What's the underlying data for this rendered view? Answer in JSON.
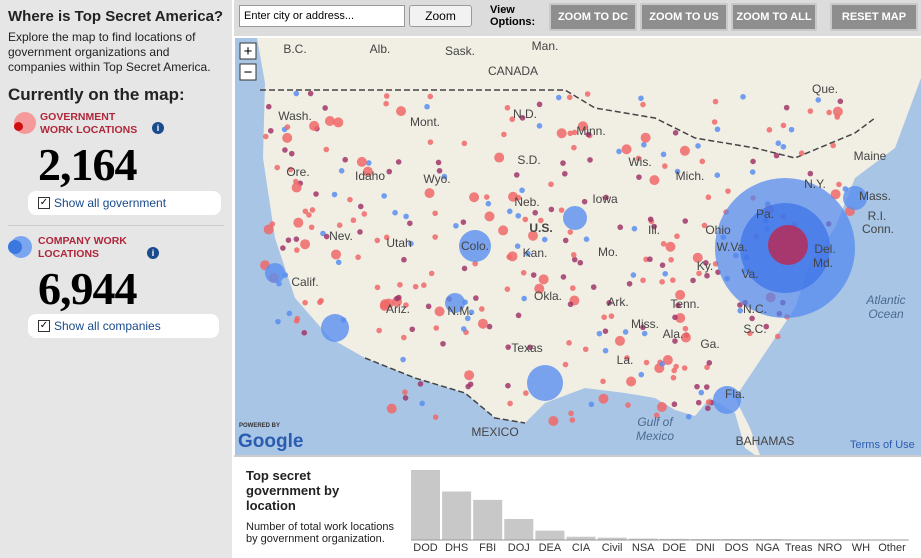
{
  "sidebar": {
    "title": "Where is Top Secret America?",
    "intro": "Explore the map to find locations of government organizations and companies within Top Secret America.",
    "heading": "Currently on the map:",
    "government": {
      "label": "GOVERNMENT WORK LOCATIONS",
      "count": "2,164",
      "toggle": "Show all government"
    },
    "company": {
      "label": "COMPANY WORK LOCATIONS",
      "count": "6,944",
      "toggle": "Show all companies"
    }
  },
  "toolbar": {
    "search_placeholder": "Enter city  or address...",
    "zoom": "Zoom",
    "view_options": "View Options:",
    "buttons": [
      "ZOOM TO DC",
      "ZOOM TO US",
      "ZOOM TO ALL"
    ],
    "reset": "RESET MAP"
  },
  "map": {
    "labels": [
      "B.C.",
      "Alb.",
      "Sask.",
      "Man.",
      "CANADA",
      "Que.",
      "Wash.",
      "Mont.",
      "N.D.",
      "Minn.",
      "Ore.",
      "Idaho",
      "Wyo.",
      "S.D.",
      "Wis.",
      "Mich.",
      "Maine",
      "Mass.",
      "R.I.",
      "Conn.",
      "Nev.",
      "Utah",
      "Neb.",
      "Iowa",
      "U.S.",
      "Ill.",
      "Ohio",
      "Pa.",
      "N.Y.",
      "Del.",
      "Md.",
      "Calif.",
      "Colo.",
      "Kan.",
      "Mo.",
      "Ky.",
      "W.Va.",
      "Va.",
      "Ariz.",
      "N.M.",
      "Okla.",
      "Ark.",
      "Tenn.",
      "N.C.",
      "Texas",
      "La.",
      "Miss.",
      "Ala.",
      "Ga.",
      "S.C.",
      "Fla.",
      "MEXICO",
      "BAHAMAS"
    ],
    "water_labels": [
      "Atlantic",
      "Ocean",
      "Gulf of",
      "Mexico"
    ],
    "powered_by": "POWERED BY",
    "google": "Google",
    "terms": "Terms of Use",
    "zoom_in": "+",
    "zoom_out": "−"
  },
  "chart_data": {
    "type": "bar",
    "title": "Top secret government by location",
    "subtitle": "Number of total work locations by government organization.",
    "categories": [
      "DOD",
      "DHS",
      "FBI",
      "DOJ",
      "DEA",
      "CIA",
      "Civil",
      "NSA",
      "DOE",
      "DNI",
      "DOS",
      "NGA",
      "Treas",
      "NRO",
      "WH",
      "Other"
    ],
    "values": [
      750,
      520,
      430,
      225,
      100,
      35,
      25,
      15,
      12,
      10,
      10,
      10,
      6,
      5,
      5,
      5
    ],
    "color": "#c8c8c8"
  }
}
